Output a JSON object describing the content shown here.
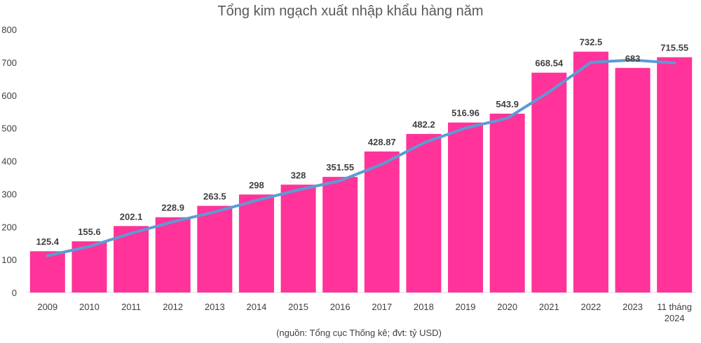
{
  "chart_data": {
    "type": "bar",
    "title": "Tổng kim ngạch xuất nhập khẩu hàng năm",
    "source_note": "(nguồn: Tổng cục Thống kê; đvt: tỷ USD)",
    "categories": [
      [
        "2009"
      ],
      [
        "2010"
      ],
      [
        "2011"
      ],
      [
        "2012"
      ],
      [
        "2013"
      ],
      [
        "2014"
      ],
      [
        "2015"
      ],
      [
        "2016"
      ],
      [
        "2017"
      ],
      [
        "2018"
      ],
      [
        "2019"
      ],
      [
        "2020"
      ],
      [
        "2021"
      ],
      [
        "2022"
      ],
      [
        "2023"
      ],
      [
        "11 tháng",
        "2024"
      ]
    ],
    "values": [
      125.4,
      155.6,
      202.1,
      228.9,
      263.5,
      298,
      328,
      351.55,
      428.87,
      482.2,
      516.96,
      543.9,
      668.54,
      732.5,
      683,
      715.55
    ],
    "value_labels": [
      "125.4",
      "155.6",
      "202.1",
      "228.9",
      "263.5",
      "298",
      "328",
      "351.55",
      "428.87",
      "482.2",
      "516.96",
      "543.9",
      "668.54",
      "732.5",
      "683",
      "715.55"
    ],
    "trend_line": [
      112,
      140,
      180,
      215,
      245,
      280,
      312,
      340,
      390,
      455,
      500,
      530,
      610,
      700,
      707,
      698
    ],
    "ylim": [
      0,
      800
    ],
    "yticks": [
      0,
      100,
      200,
      300,
      400,
      500,
      600,
      700,
      800
    ],
    "bar_color": "#ff3399",
    "line_color": "#5b9bd5",
    "grid": false,
    "legend": "none"
  }
}
